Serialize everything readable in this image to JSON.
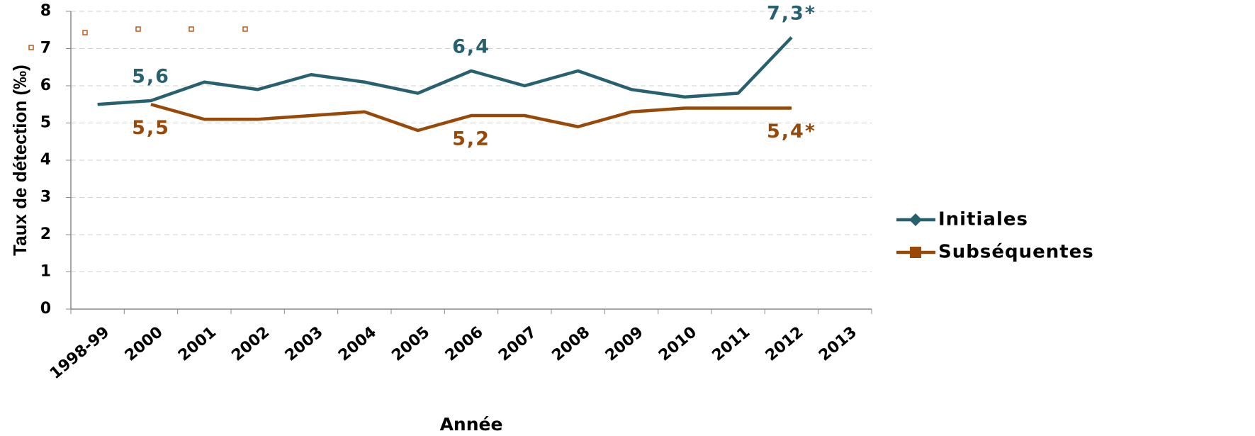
{
  "chart_data": {
    "type": "line",
    "x_label": "Année",
    "y_label": "Taux de détection (‰)",
    "categories": [
      "1998-99",
      "2000",
      "2001",
      "2002",
      "2003",
      "2004",
      "2005",
      "2006",
      "2007",
      "2008",
      "2009",
      "2010",
      "2011",
      "2012",
      "2013"
    ],
    "series": [
      {
        "name": "Initiales",
        "color": "#27606f",
        "marker": "diamond",
        "values": [
          5.5,
          5.6,
          6.1,
          5.9,
          6.3,
          6.1,
          5.8,
          6.4,
          6.0,
          6.4,
          5.9,
          5.7,
          5.8,
          7.3,
          null
        ],
        "value_labels": [
          null,
          "5,6",
          null,
          null,
          null,
          null,
          null,
          "6,4",
          null,
          null,
          null,
          null,
          null,
          "7,3*",
          null
        ]
      },
      {
        "name": "Subséquentes",
        "color": "#984807",
        "marker": "square",
        "values": [
          null,
          5.5,
          5.1,
          5.1,
          5.2,
          5.3,
          4.8,
          5.2,
          5.2,
          4.9,
          5.3,
          5.4,
          5.4,
          5.4,
          null
        ],
        "value_labels": [
          null,
          "5,5",
          null,
          null,
          null,
          null,
          null,
          "5,2",
          null,
          null,
          null,
          null,
          null,
          "5,4*",
          null
        ]
      }
    ],
    "ylim": [
      0,
      8
    ],
    "yticks": [
      0,
      1,
      2,
      3,
      4,
      5,
      6,
      7,
      8
    ],
    "grid": true,
    "legend": "right"
  }
}
